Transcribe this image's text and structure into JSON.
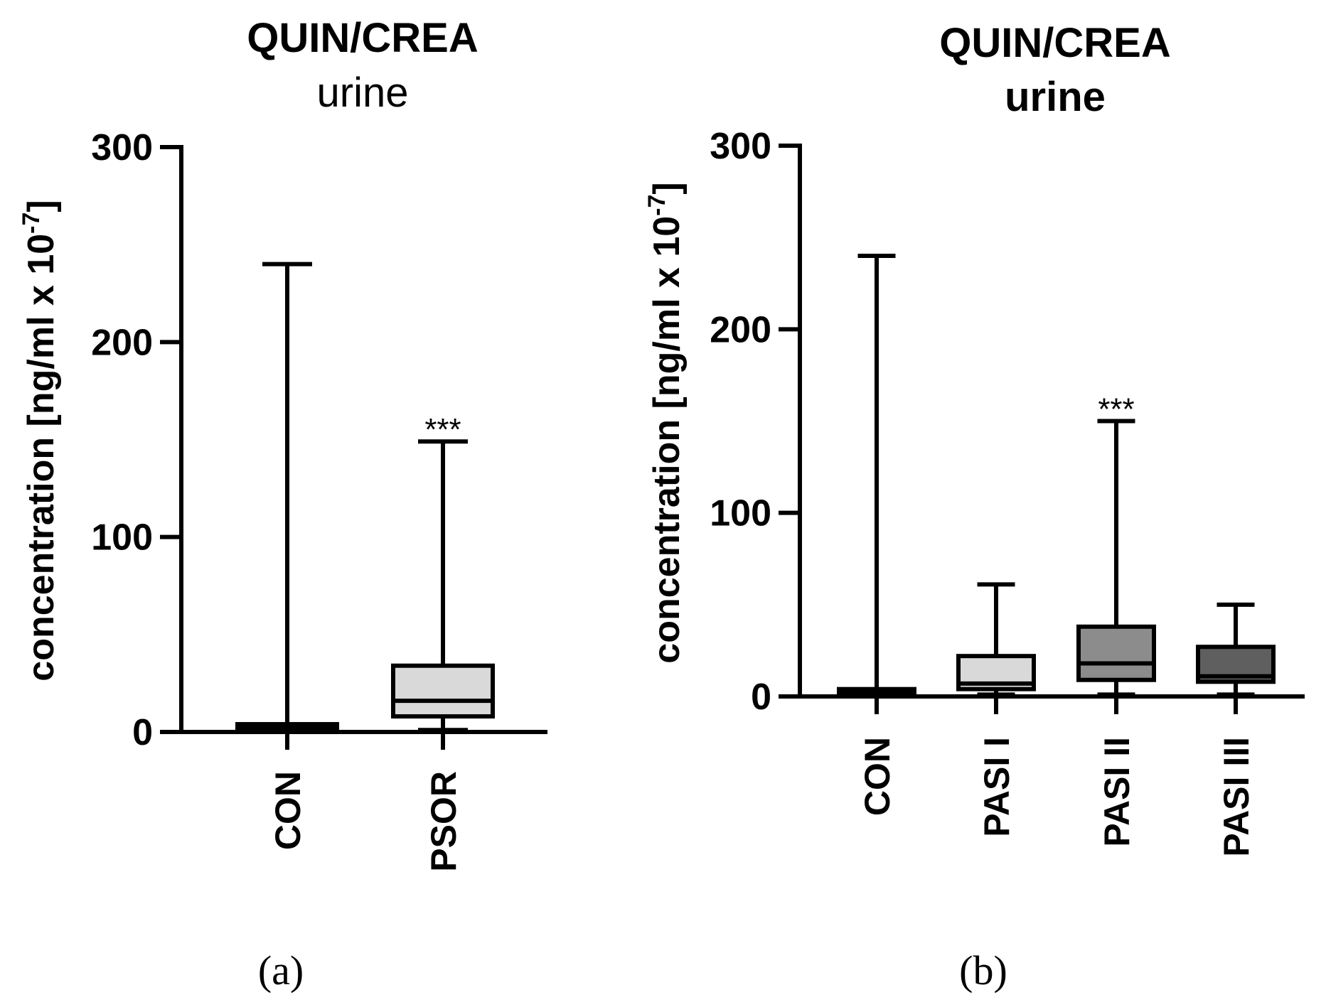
{
  "chart_data": [
    {
      "type": "boxplot",
      "panel_label": "(a)",
      "title": "QUIN/CREA",
      "subtitle": "urine",
      "ylabel_main": "concentration [ng/ml x 10",
      "ylabel_exp": "-7",
      "ylabel_close": "]",
      "ylim": [
        0,
        300
      ],
      "yticks": [
        "0",
        "100",
        "200",
        "300"
      ],
      "categories": [
        "CON",
        "PSOR"
      ],
      "boxes": [
        {
          "name": "CON",
          "min": 0,
          "q1": 1,
          "median": 2,
          "q3": 4,
          "max": 240,
          "color": "#222222",
          "annotation": ""
        },
        {
          "name": "PSOR",
          "min": 1,
          "q1": 8,
          "median": 16,
          "q3": 34,
          "max": 149,
          "color": "#d9d9d9",
          "annotation": "***"
        }
      ]
    },
    {
      "type": "boxplot",
      "panel_label": "(b)",
      "title": "QUIN/CREA",
      "subtitle": "urine",
      "ylabel_main": "concentration [ng/ml x 10",
      "ylabel_exp": "-7",
      "ylabel_close": "]",
      "ylim": [
        0,
        300
      ],
      "yticks": [
        "0",
        "100",
        "200",
        "300"
      ],
      "categories": [
        "CON",
        "PASI I",
        "PASI II",
        "PASI III"
      ],
      "boxes": [
        {
          "name": "CON",
          "min": 0,
          "q1": 1,
          "median": 2,
          "q3": 4,
          "max": 240,
          "color": "#222222",
          "annotation": ""
        },
        {
          "name": "PASI I",
          "min": 1,
          "q1": 4,
          "median": 7,
          "q3": 22,
          "max": 61,
          "color": "#d9d9d9",
          "annotation": ""
        },
        {
          "name": "PASI II",
          "min": 1,
          "q1": 9,
          "median": 18,
          "q3": 38,
          "max": 150,
          "color": "#8c8c8c",
          "annotation": "***"
        },
        {
          "name": "PASI III",
          "min": 1,
          "q1": 8,
          "median": 11,
          "q3": 27,
          "max": 50,
          "color": "#5f5f5f",
          "annotation": ""
        }
      ]
    }
  ]
}
